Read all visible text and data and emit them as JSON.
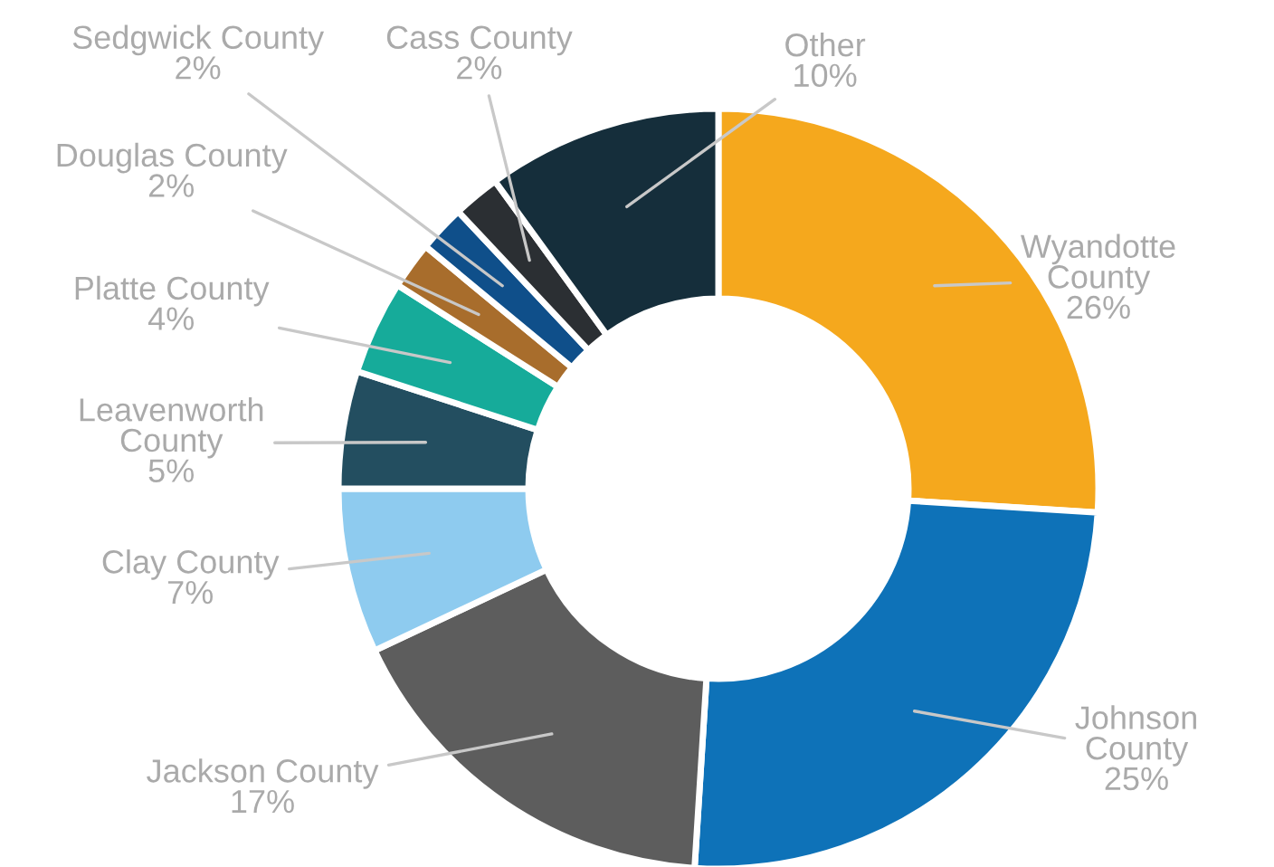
{
  "chart_data": {
    "type": "donut",
    "categories": [
      "Wyandotte\nCounty",
      "Johnson\nCounty",
      "Jackson County",
      "Clay County",
      "Leavenworth\nCounty",
      "Platte County",
      "Douglas County",
      "Sedgwick County",
      "Cass County",
      "Other"
    ],
    "values": [
      26,
      25,
      17,
      7,
      5,
      4,
      2,
      2,
      2,
      10
    ],
    "colors": [
      "#f5a81d",
      "#0e72b8",
      "#5d5d5d",
      "#8ecbef",
      "#234e60",
      "#16ab9a",
      "#a86d2c",
      "#0f4f8a",
      "#2b2f33",
      "#152e3b"
    ],
    "value_labels": [
      "26%",
      "25%",
      "17%",
      "7%",
      "5%",
      "4%",
      "2%",
      "2%",
      "2%",
      "10%"
    ],
    "legend": false
  }
}
